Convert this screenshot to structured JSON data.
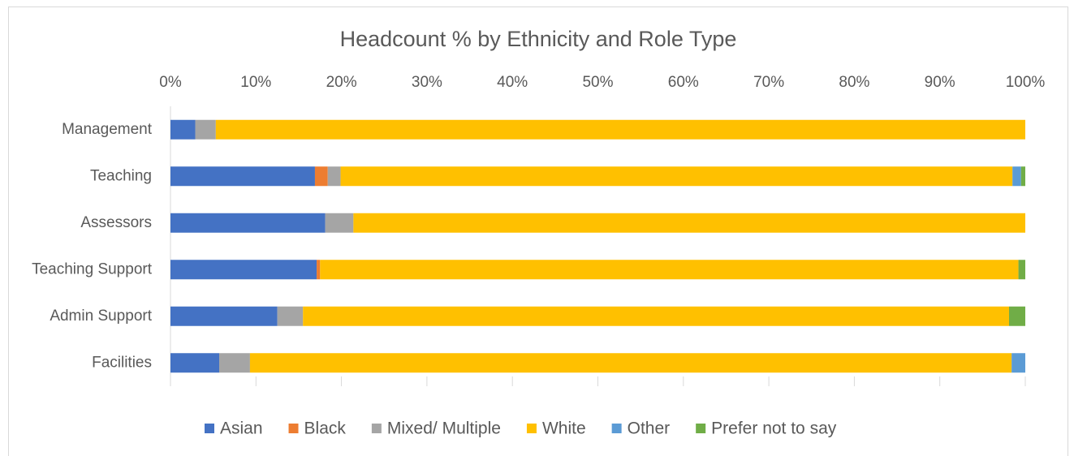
{
  "chart_data": {
    "type": "stacked-bar-horizontal",
    "title": "Headcount % by Ethnicity and Role Type",
    "categories": [
      "Management",
      "Teaching",
      "Assessors",
      "Teaching Support",
      "Admin Support",
      "Facilities"
    ],
    "series": [
      {
        "name": "Asian",
        "color": "#4472c4",
        "values": [
          2.9,
          16.9,
          18.1,
          17.1,
          12.5,
          5.7
        ]
      },
      {
        "name": "Black",
        "color": "#ed7d31",
        "values": [
          0,
          1.5,
          0,
          0.4,
          0,
          0
        ]
      },
      {
        "name": "Mixed/ Multiple",
        "color": "#a5a5a5",
        "values": [
          2.4,
          1.5,
          3.3,
          0,
          3.0,
          3.6
        ]
      },
      {
        "name": "White",
        "color": "#ffc000",
        "values": [
          94.7,
          78.6,
          78.6,
          81.7,
          82.6,
          89.1
        ]
      },
      {
        "name": "Other",
        "color": "#5b9bd5",
        "values": [
          0,
          1.0,
          0,
          0,
          0,
          1.6
        ]
      },
      {
        "name": "Prefer not to say",
        "color": "#70ad47",
        "values": [
          0,
          0.5,
          0,
          0.8,
          1.9,
          0
        ]
      }
    ],
    "xlim": [
      0,
      100
    ],
    "xticks": [
      {
        "value": 0,
        "label": "0%"
      },
      {
        "value": 10,
        "label": "10%"
      },
      {
        "value": 20,
        "label": "20%"
      },
      {
        "value": 30,
        "label": "30%"
      },
      {
        "value": 40,
        "label": "40%"
      },
      {
        "value": 50,
        "label": "50%"
      },
      {
        "value": 60,
        "label": "60%"
      },
      {
        "value": 70,
        "label": "70%"
      },
      {
        "value": 80,
        "label": "80%"
      },
      {
        "value": 90,
        "label": "90%"
      },
      {
        "value": 100,
        "label": "100%"
      }
    ],
    "grid": false,
    "legend": "bottom"
  }
}
